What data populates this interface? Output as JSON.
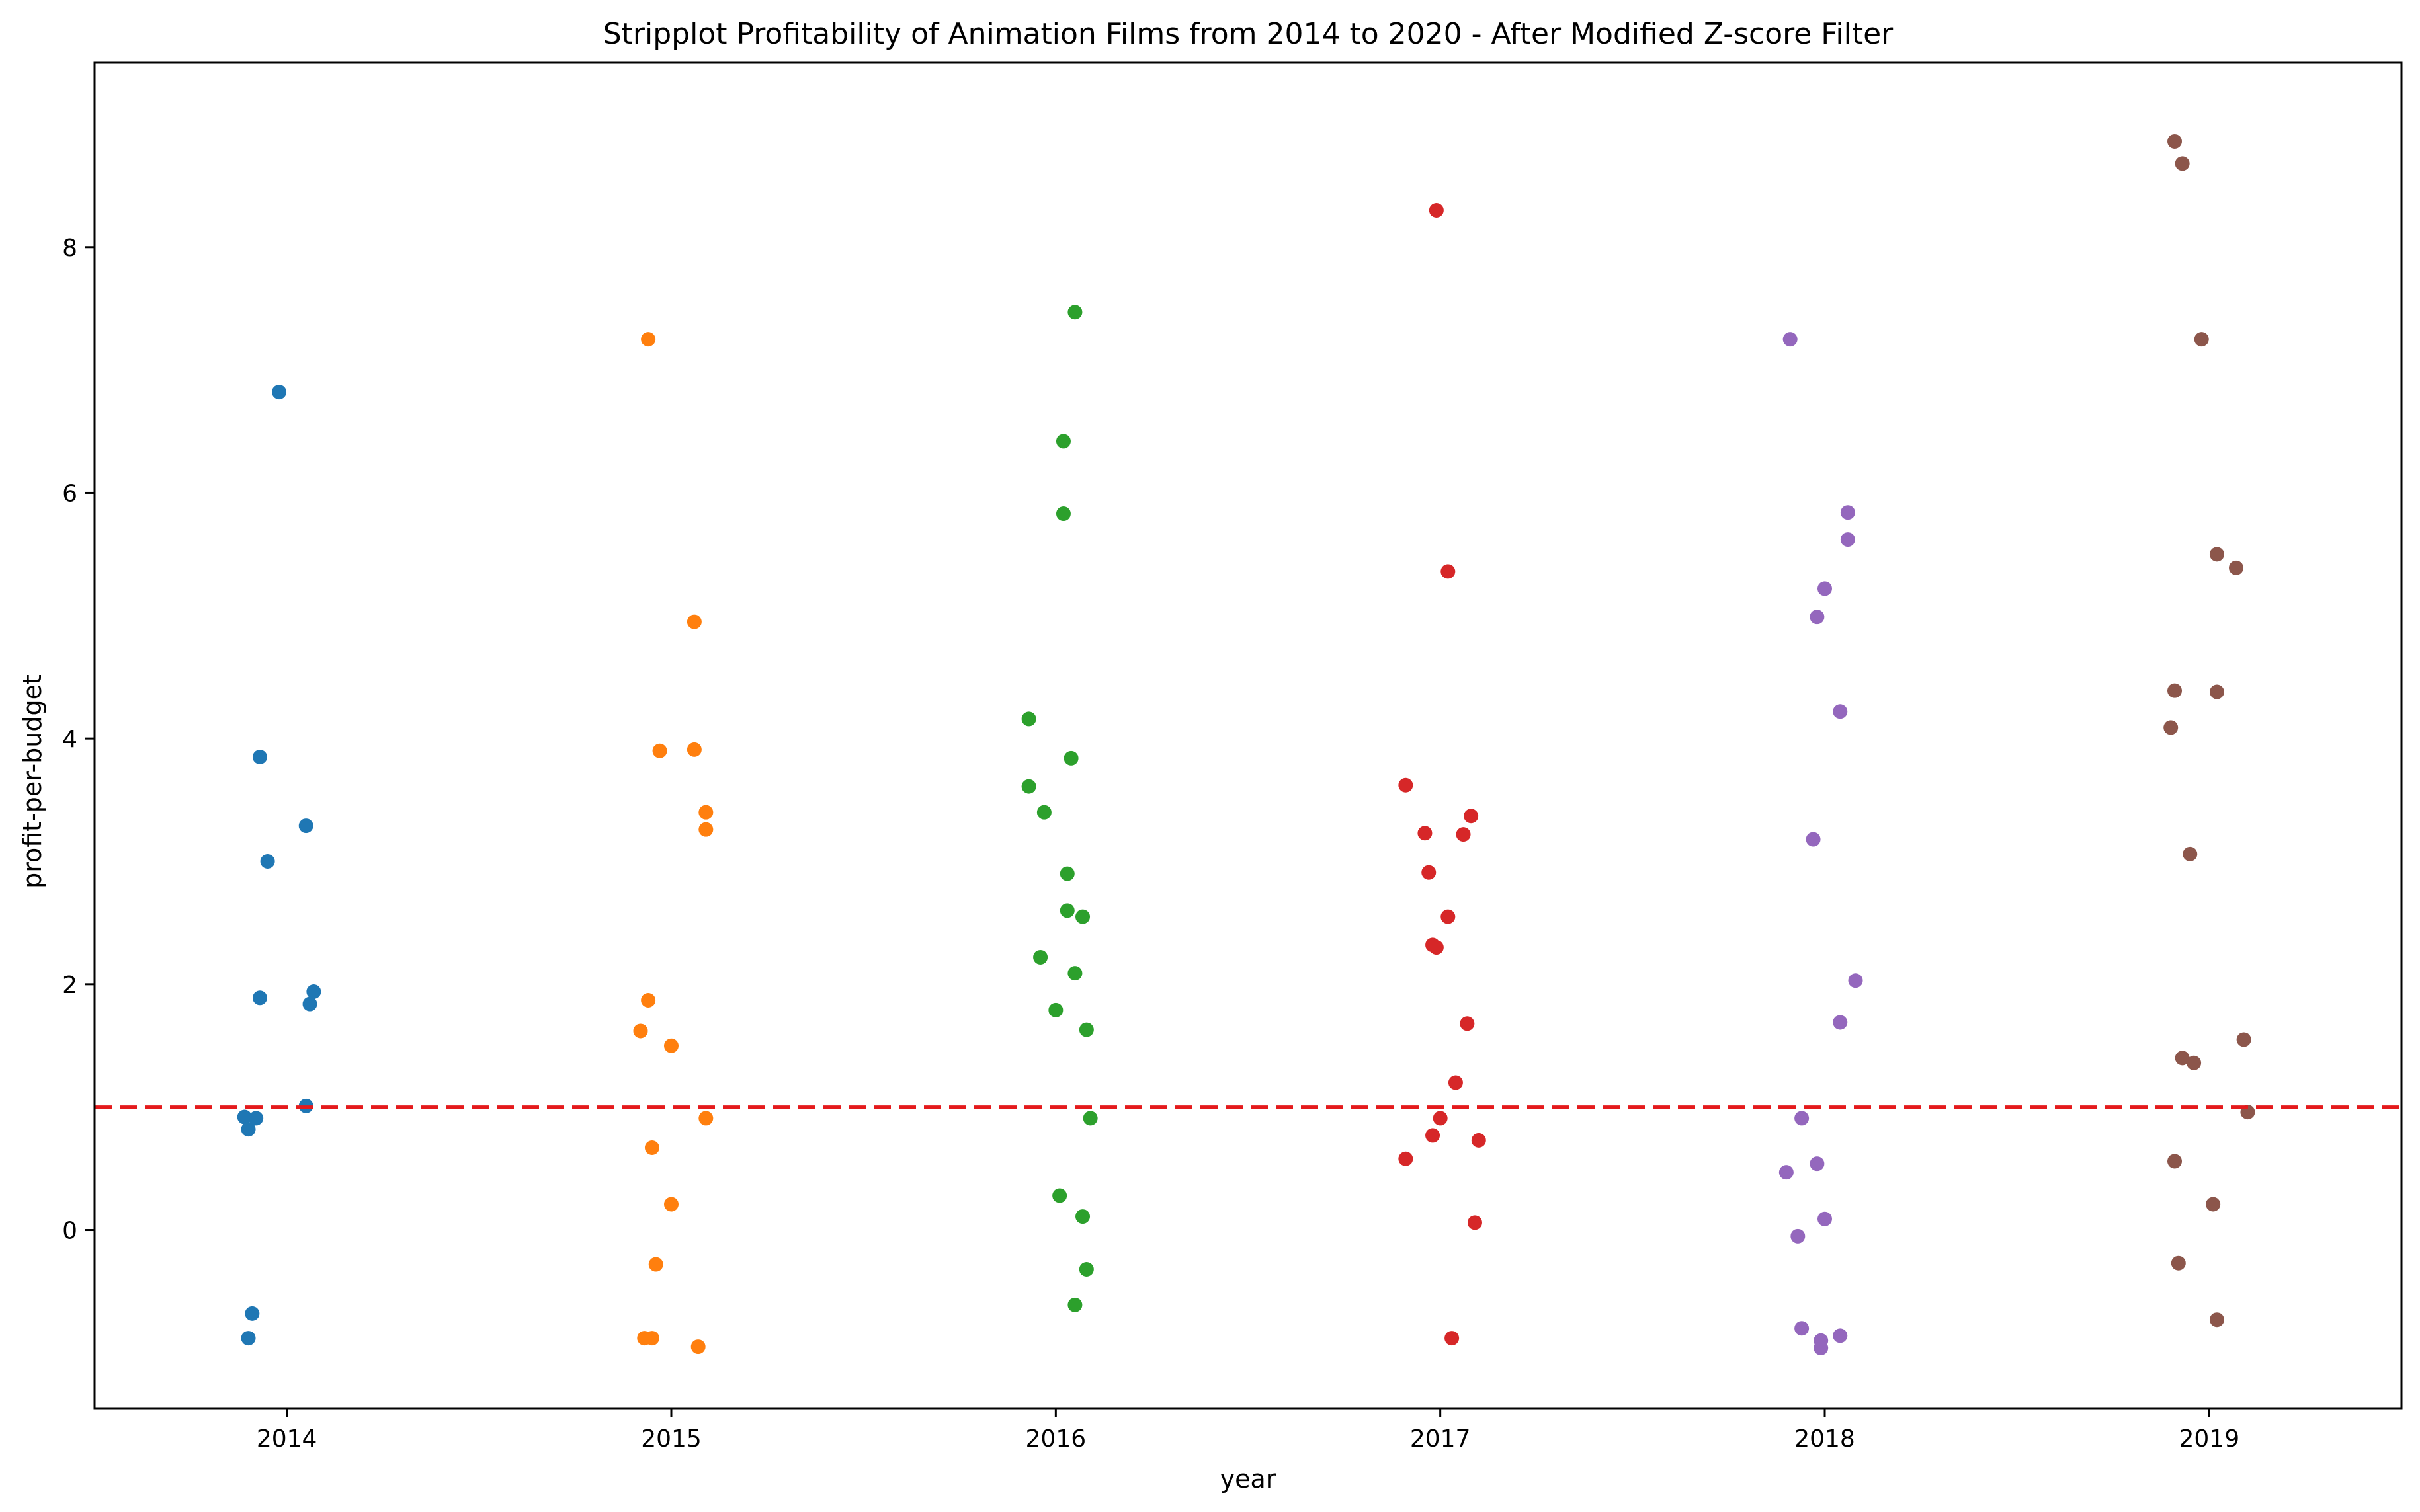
{
  "chart_data": {
    "type": "scatter",
    "title": "Stripplot Profitability of Animation Films from 2014 to 2020 - After Modified Z-score Filter",
    "xlabel": "year",
    "ylabel": "profit-per-budget",
    "categories": [
      "2014",
      "2015",
      "2016",
      "2017",
      "2018",
      "2019"
    ],
    "ylim": [
      -1.45,
      9.5
    ],
    "yticks": [
      0,
      2,
      4,
      6,
      8
    ],
    "grid": false,
    "legend": "none",
    "reference_line": {
      "y": 1.0,
      "color": "#d62728",
      "style": "dashed"
    },
    "series": [
      {
        "category": "2014",
        "color": "#1f77b4",
        "points": [
          {
            "x": -0.02,
            "y": 6.82
          },
          {
            "x": -0.07,
            "y": 3.85
          },
          {
            "x": 0.05,
            "y": 3.29
          },
          {
            "x": -0.05,
            "y": 3.0
          },
          {
            "x": 0.07,
            "y": 1.94
          },
          {
            "x": -0.07,
            "y": 1.89
          },
          {
            "x": 0.06,
            "y": 1.84
          },
          {
            "x": 0.05,
            "y": 1.01
          },
          {
            "x": -0.11,
            "y": 0.92
          },
          {
            "x": -0.08,
            "y": 0.91
          },
          {
            "x": -0.1,
            "y": 0.82
          },
          {
            "x": -0.09,
            "y": -0.68
          },
          {
            "x": -0.1,
            "y": -0.88
          }
        ]
      },
      {
        "category": "2015",
        "color": "#ff7f0e",
        "points": [
          {
            "x": -0.06,
            "y": 7.25
          },
          {
            "x": 0.06,
            "y": 4.95
          },
          {
            "x": -0.03,
            "y": 3.9
          },
          {
            "x": 0.06,
            "y": 3.91
          },
          {
            "x": 0.09,
            "y": 3.4
          },
          {
            "x": 0.09,
            "y": 3.26
          },
          {
            "x": -0.06,
            "y": 1.87
          },
          {
            "x": -0.08,
            "y": 1.62
          },
          {
            "x": 0.0,
            "y": 1.5
          },
          {
            "x": 0.09,
            "y": 0.91
          },
          {
            "x": -0.05,
            "y": 0.67
          },
          {
            "x": 0.0,
            "y": 0.21
          },
          {
            "x": -0.04,
            "y": -0.28
          },
          {
            "x": -0.07,
            "y": -0.88
          },
          {
            "x": -0.05,
            "y": -0.88
          },
          {
            "x": 0.07,
            "y": -0.95
          }
        ]
      },
      {
        "category": "2016",
        "color": "#2ca02c",
        "points": [
          {
            "x": 0.05,
            "y": 7.47
          },
          {
            "x": 0.02,
            "y": 6.42
          },
          {
            "x": 0.02,
            "y": 5.83
          },
          {
            "x": -0.07,
            "y": 4.16
          },
          {
            "x": 0.04,
            "y": 3.84
          },
          {
            "x": -0.07,
            "y": 3.61
          },
          {
            "x": -0.03,
            "y": 3.4
          },
          {
            "x": 0.03,
            "y": 2.9
          },
          {
            "x": 0.03,
            "y": 2.6
          },
          {
            "x": 0.07,
            "y": 2.55
          },
          {
            "x": -0.04,
            "y": 2.22
          },
          {
            "x": 0.05,
            "y": 2.09
          },
          {
            "x": 0.0,
            "y": 1.79
          },
          {
            "x": 0.08,
            "y": 1.63
          },
          {
            "x": 0.09,
            "y": 0.91
          },
          {
            "x": 0.01,
            "y": 0.28
          },
          {
            "x": 0.07,
            "y": 0.11
          },
          {
            "x": 0.08,
            "y": -0.32
          },
          {
            "x": 0.05,
            "y": -0.61
          }
        ]
      },
      {
        "category": "2017",
        "color": "#d62728",
        "points": [
          {
            "x": -0.01,
            "y": 8.3
          },
          {
            "x": 0.02,
            "y": 5.36
          },
          {
            "x": -0.09,
            "y": 3.62
          },
          {
            "x": 0.08,
            "y": 3.37
          },
          {
            "x": -0.04,
            "y": 3.23
          },
          {
            "x": 0.06,
            "y": 3.22
          },
          {
            "x": -0.03,
            "y": 2.91
          },
          {
            "x": 0.02,
            "y": 2.55
          },
          {
            "x": -0.02,
            "y": 2.32
          },
          {
            "x": -0.01,
            "y": 2.3
          },
          {
            "x": 0.07,
            "y": 1.68
          },
          {
            "x": 0.04,
            "y": 1.2
          },
          {
            "x": 0.0,
            "y": 0.91
          },
          {
            "x": -0.02,
            "y": 0.77
          },
          {
            "x": 0.1,
            "y": 0.73
          },
          {
            "x": -0.09,
            "y": 0.58
          },
          {
            "x": 0.09,
            "y": 0.06
          },
          {
            "x": 0.03,
            "y": -0.88
          }
        ]
      },
      {
        "category": "2018",
        "color": "#9467bd",
        "points": [
          {
            "x": -0.09,
            "y": 7.25
          },
          {
            "x": 0.06,
            "y": 5.84
          },
          {
            "x": 0.06,
            "y": 5.62
          },
          {
            "x": 0.0,
            "y": 5.22
          },
          {
            "x": -0.02,
            "y": 4.99
          },
          {
            "x": 0.04,
            "y": 4.22
          },
          {
            "x": -0.03,
            "y": 3.18
          },
          {
            "x": 0.08,
            "y": 2.03
          },
          {
            "x": 0.04,
            "y": 1.69
          },
          {
            "x": -0.06,
            "y": 0.91
          },
          {
            "x": -0.02,
            "y": 0.54
          },
          {
            "x": -0.1,
            "y": 0.47
          },
          {
            "x": 0.0,
            "y": 0.09
          },
          {
            "x": -0.07,
            "y": -0.05
          },
          {
            "x": -0.06,
            "y": -0.8
          },
          {
            "x": 0.04,
            "y": -0.86
          },
          {
            "x": -0.01,
            "y": -0.9
          },
          {
            "x": -0.01,
            "y": -0.96
          }
        ]
      },
      {
        "category": "2019",
        "color": "#8c564b",
        "points": [
          {
            "x": -0.09,
            "y": 8.86
          },
          {
            "x": -0.07,
            "y": 8.68
          },
          {
            "x": -0.02,
            "y": 7.25
          },
          {
            "x": 0.02,
            "y": 5.5
          },
          {
            "x": 0.07,
            "y": 5.39
          },
          {
            "x": -0.09,
            "y": 4.39
          },
          {
            "x": 0.02,
            "y": 4.38
          },
          {
            "x": -0.1,
            "y": 4.09
          },
          {
            "x": -0.05,
            "y": 3.06
          },
          {
            "x": 0.09,
            "y": 1.55
          },
          {
            "x": -0.07,
            "y": 1.4
          },
          {
            "x": -0.04,
            "y": 1.36
          },
          {
            "x": 0.1,
            "y": 0.96
          },
          {
            "x": -0.09,
            "y": 0.56
          },
          {
            "x": 0.01,
            "y": 0.21
          },
          {
            "x": -0.08,
            "y": -0.27
          },
          {
            "x": 0.02,
            "y": -0.73
          }
        ]
      }
    ]
  }
}
